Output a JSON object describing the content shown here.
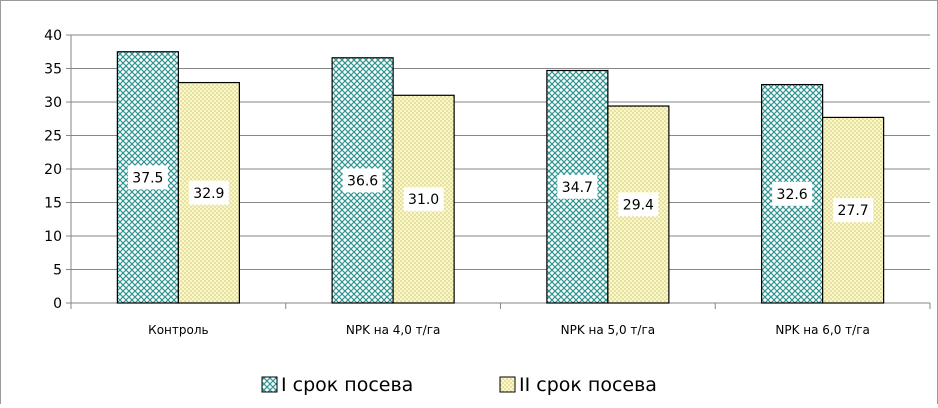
{
  "chart_data": {
    "type": "bar",
    "categories": [
      "Контроль",
      "NPK на 4,0 т/га",
      "NPK на 5,0 т/га",
      "NPK на 6,0 т/га"
    ],
    "series": [
      {
        "name": "I срок посева",
        "values": [
          37.5,
          36.6,
          34.7,
          32.6
        ],
        "labels": [
          "37.5",
          "36.6",
          "34.7",
          "32.6"
        ],
        "pattern": "crosshatch",
        "color": "#43a7a3"
      },
      {
        "name": "II срок посева",
        "values": [
          32.9,
          31.0,
          29.4,
          27.7
        ],
        "labels": [
          "32.9",
          "31.0",
          "29.4",
          "27.7"
        ],
        "pattern": "dots",
        "color": "#fcf8c4"
      }
    ],
    "ylim": [
      0,
      40
    ],
    "yticks": [
      0,
      5,
      10,
      15,
      20,
      25,
      30,
      35,
      40
    ],
    "grid": true,
    "legend_position": "bottom"
  }
}
